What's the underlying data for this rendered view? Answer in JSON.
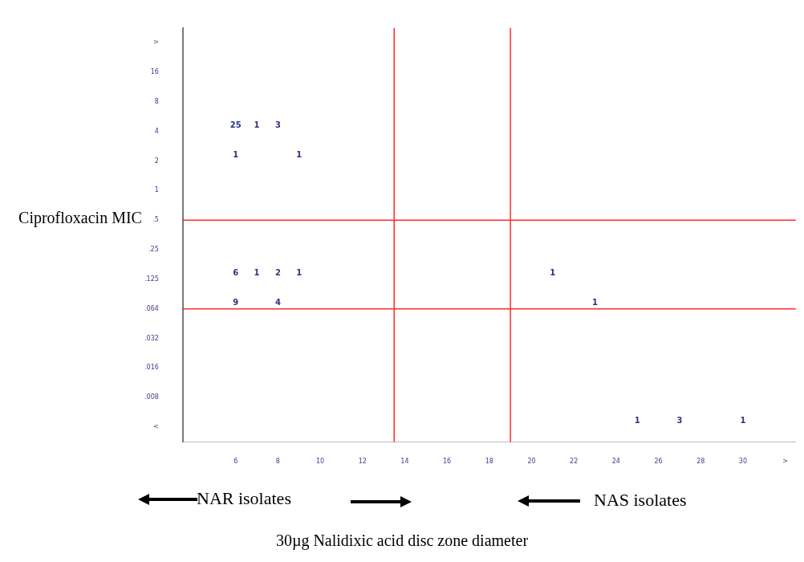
{
  "chart_data": {
    "type": "heatmap",
    "xlabel": "30µg Nalidixic acid disc zone diameter",
    "ylabel": "Ciprofloxacin MIC",
    "categories": [
      null,
      null,
      "6",
      null,
      "8",
      null,
      "10",
      null,
      "12",
      null,
      "14",
      null,
      "16",
      null,
      "18",
      null,
      "20",
      null,
      "22",
      null,
      "24",
      null,
      "26",
      null,
      "28",
      null,
      "30",
      null,
      ">"
    ],
    "y_categories": [
      ">",
      "16",
      "8",
      "4",
      "2",
      "1",
      ".5",
      ".25",
      ".125",
      ".064",
      ".032",
      ".016",
      ".008",
      "<"
    ],
    "cells": [
      [
        null,
        null,
        null,
        null,
        null,
        null,
        null,
        null,
        null,
        null,
        null,
        null,
        null,
        null,
        null,
        null,
        null,
        null,
        null,
        null,
        null,
        null,
        null,
        null,
        null,
        null,
        null,
        null,
        null
      ],
      [
        null,
        null,
        null,
        null,
        null,
        null,
        null,
        null,
        null,
        null,
        null,
        null,
        null,
        null,
        null,
        null,
        null,
        null,
        null,
        null,
        null,
        null,
        null,
        null,
        null,
        null,
        null,
        null,
        null
      ],
      [
        null,
        null,
        null,
        null,
        null,
        null,
        null,
        null,
        null,
        null,
        null,
        null,
        null,
        null,
        null,
        null,
        null,
        null,
        null,
        null,
        null,
        null,
        null,
        null,
        null,
        null,
        null,
        null,
        null
      ],
      [
        null,
        null,
        25,
        1,
        3,
        null,
        null,
        null,
        null,
        null,
        null,
        null,
        null,
        null,
        null,
        null,
        null,
        null,
        null,
        null,
        null,
        null,
        null,
        null,
        null,
        null,
        null,
        null,
        null
      ],
      [
        null,
        null,
        1,
        null,
        null,
        1,
        null,
        null,
        null,
        null,
        null,
        null,
        null,
        null,
        null,
        null,
        null,
        null,
        null,
        null,
        null,
        null,
        null,
        null,
        null,
        null,
        null,
        null,
        null
      ],
      [
        null,
        null,
        null,
        null,
        null,
        null,
        null,
        null,
        null,
        null,
        null,
        null,
        null,
        null,
        null,
        null,
        null,
        null,
        null,
        null,
        null,
        null,
        null,
        null,
        null,
        null,
        null,
        null,
        null
      ],
      [
        null,
        null,
        null,
        null,
        null,
        null,
        null,
        null,
        null,
        null,
        null,
        null,
        null,
        null,
        null,
        null,
        null,
        null,
        null,
        null,
        null,
        null,
        null,
        null,
        null,
        null,
        null,
        null,
        null
      ],
      [
        null,
        null,
        null,
        null,
        null,
        null,
        null,
        null,
        null,
        null,
        null,
        null,
        null,
        null,
        null,
        null,
        null,
        null,
        null,
        null,
        null,
        null,
        null,
        null,
        null,
        null,
        null,
        null,
        null
      ],
      [
        null,
        null,
        6,
        1,
        2,
        1,
        null,
        null,
        null,
        null,
        null,
        null,
        null,
        null,
        null,
        null,
        null,
        1,
        null,
        null,
        null,
        null,
        null,
        null,
        null,
        null,
        null,
        null,
        null
      ],
      [
        null,
        null,
        9,
        null,
        4,
        null,
        null,
        null,
        null,
        null,
        null,
        null,
        null,
        null,
        null,
        null,
        null,
        null,
        null,
        1,
        null,
        null,
        null,
        null,
        null,
        null,
        null,
        null,
        null
      ],
      [
        null,
        null,
        null,
        null,
        null,
        null,
        null,
        null,
        null,
        null,
        null,
        null,
        null,
        null,
        null,
        null,
        null,
        null,
        null,
        null,
        null,
        null,
        null,
        null,
        null,
        null,
        null,
        null,
        null
      ],
      [
        null,
        null,
        null,
        null,
        null,
        null,
        null,
        null,
        null,
        null,
        null,
        null,
        null,
        null,
        null,
        null,
        null,
        null,
        null,
        null,
        null,
        null,
        null,
        null,
        null,
        null,
        null,
        null,
        null
      ],
      [
        null,
        null,
        null,
        null,
        null,
        null,
        null,
        null,
        null,
        null,
        null,
        null,
        null,
        null,
        null,
        null,
        null,
        null,
        null,
        null,
        null,
        null,
        null,
        null,
        null,
        null,
        null,
        null,
        null
      ],
      [
        null,
        null,
        null,
        null,
        null,
        null,
        null,
        null,
        null,
        null,
        null,
        null,
        null,
        null,
        null,
        null,
        null,
        null,
        null,
        null,
        null,
        1,
        null,
        3,
        null,
        null,
        1,
        null,
        null
      ]
    ],
    "ref_lines": [
      {
        "axis": "y",
        "value": ".5",
        "color": "#ff2a2a"
      },
      {
        "axis": "y",
        "value": ".064",
        "color": "#ff2a2a"
      }
    ],
    "data_labels": true,
    "annotations": [
      "NAR isolates",
      "NAS isolates"
    ]
  }
}
